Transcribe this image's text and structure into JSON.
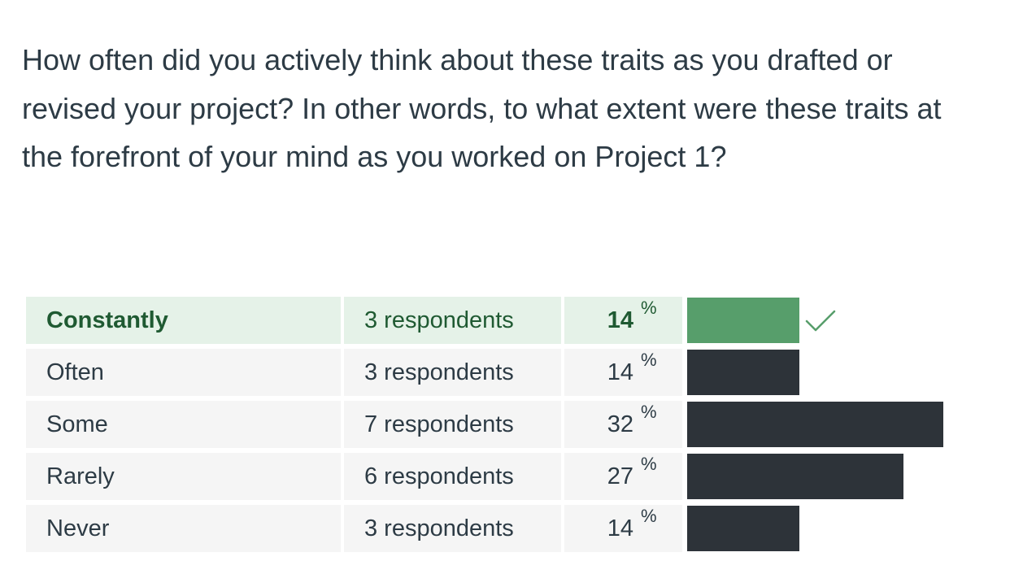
{
  "question": {
    "text": "How often did you actively think about these traits as you drafted or revised your project? In other words, to what extent were these traits at the forefront of your mind as you worked on Project 1?"
  },
  "results": {
    "percent_sign": "%",
    "correct_color": "#579e6b",
    "bar_color": "#2d3339",
    "rows": [
      {
        "answer": "Constantly",
        "respondents": "3 respondents",
        "percent": "14",
        "value": 14,
        "correct": true
      },
      {
        "answer": "Often",
        "respondents": "3 respondents",
        "percent": "14",
        "value": 14,
        "correct": false
      },
      {
        "answer": "Some",
        "respondents": "7 respondents",
        "percent": "32",
        "value": 32,
        "correct": false
      },
      {
        "answer": "Rarely",
        "respondents": "6 respondents",
        "percent": "27",
        "value": 27,
        "correct": false
      },
      {
        "answer": "Never",
        "respondents": "3 respondents",
        "percent": "14",
        "value": 14,
        "correct": false
      }
    ]
  }
}
